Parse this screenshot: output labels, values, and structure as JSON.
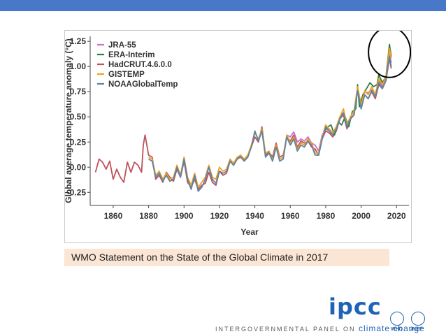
{
  "caption": "WMO Statement on the State of the Global Climate in 2017",
  "logo": {
    "ipcc_text": "ipcc",
    "tagline_prefix": "INTERGOVERNMENTAL PANEL ON",
    "tagline_strong": "climate change",
    "org1": "WHO",
    "org2": "UNEP"
  },
  "colors": {
    "top_bar": "#4a78c8",
    "JRA-55": "#c86fc8",
    "ERA-Interim": "#2e7d3c",
    "HadCRUT.4.6.0.0": "#c0505a",
    "GISTEMP": "#f0a020",
    "NOAAGlobalTemp": "#5a86a8",
    "highlight_circle": "#000000"
  },
  "chart_data": {
    "type": "line",
    "title": "",
    "xlabel": "Year",
    "ylabel": "Global average temperature anomaly (°C)",
    "xlim": [
      1847,
      2027
    ],
    "ylim": [
      -0.38,
      1.3
    ],
    "xticks": [
      1860,
      1880,
      1900,
      1920,
      1940,
      1960,
      1980,
      2000,
      2020
    ],
    "yticks": [
      -0.25,
      0.0,
      0.25,
      0.5,
      0.75,
      1.0,
      1.25
    ],
    "ytick_labels": [
      "−0.25",
      "0.00",
      "0.25",
      "0.50",
      "0.75",
      "1.00",
      "1.25"
    ],
    "grid": false,
    "legend_position": "top-left",
    "highlight": {
      "x": 2016,
      "y": 1.1
    },
    "series": [
      {
        "name": "JRA-55",
        "x": [
          1958,
          1960,
          1962,
          1964,
          1966,
          1968,
          1970,
          1972,
          1974,
          1976,
          1978,
          1980,
          1982,
          1984,
          1986,
          1988,
          1990,
          1992,
          1994,
          1996,
          1998,
          2000,
          2002,
          2004,
          2006,
          2008,
          2010,
          2012,
          2014,
          2016,
          2017
        ],
        "y": [
          0.32,
          0.3,
          0.35,
          0.25,
          0.28,
          0.26,
          0.3,
          0.24,
          0.22,
          0.16,
          0.32,
          0.38,
          0.36,
          0.34,
          0.4,
          0.5,
          0.54,
          0.42,
          0.5,
          0.55,
          0.78,
          0.6,
          0.75,
          0.74,
          0.77,
          0.7,
          0.86,
          0.8,
          0.88,
          1.12,
          1.04
        ]
      },
      {
        "name": "ERA-Interim",
        "x": [
          1979,
          1981,
          1983,
          1985,
          1987,
          1989,
          1991,
          1993,
          1995,
          1997,
          1998,
          1999,
          2001,
          2003,
          2005,
          2007,
          2009,
          2010,
          2012,
          2014,
          2015,
          2016,
          2017
        ],
        "y": [
          0.36,
          0.4,
          0.42,
          0.32,
          0.45,
          0.42,
          0.5,
          0.4,
          0.55,
          0.58,
          0.82,
          0.6,
          0.72,
          0.78,
          0.84,
          0.8,
          0.82,
          0.92,
          0.84,
          0.9,
          1.06,
          1.22,
          1.1
        ]
      },
      {
        "name": "HadCRUT.4.6.0.0",
        "x": [
          1850,
          1852,
          1854,
          1856,
          1858,
          1860,
          1862,
          1864,
          1866,
          1868,
          1870,
          1872,
          1874,
          1876,
          1877,
          1878,
          1880,
          1882,
          1884,
          1886,
          1888,
          1890,
          1892,
          1894,
          1896,
          1898,
          1900,
          1902,
          1904,
          1906,
          1908,
          1910,
          1912,
          1914,
          1916,
          1918,
          1920,
          1922,
          1924,
          1926,
          1928,
          1930,
          1932,
          1934,
          1936,
          1938,
          1940,
          1942,
          1944,
          1946,
          1948,
          1950,
          1952,
          1954,
          1956,
          1958,
          1960,
          1962,
          1964,
          1966,
          1968,
          1970,
          1972,
          1974,
          1976,
          1978,
          1980,
          1982,
          1984,
          1986,
          1988,
          1990,
          1992,
          1994,
          1996,
          1998,
          2000,
          2002,
          2004,
          2006,
          2008,
          2010,
          2012,
          2014,
          2016,
          2017
        ],
        "y": [
          -0.05,
          0.08,
          0.05,
          -0.02,
          0.06,
          -0.12,
          -0.02,
          -0.1,
          -0.15,
          0.05,
          -0.05,
          0.05,
          0.02,
          -0.05,
          0.22,
          0.32,
          0.12,
          0.1,
          -0.12,
          -0.08,
          -0.15,
          -0.05,
          -0.1,
          -0.14,
          -0.02,
          -0.1,
          0.06,
          -0.15,
          -0.2,
          -0.12,
          -0.22,
          -0.18,
          -0.16,
          -0.05,
          -0.15,
          -0.18,
          -0.04,
          -0.08,
          -0.06,
          0.06,
          0.02,
          0.08,
          0.12,
          0.06,
          0.12,
          0.2,
          0.3,
          0.25,
          0.4,
          0.12,
          0.15,
          0.1,
          0.24,
          0.1,
          0.12,
          0.3,
          0.26,
          0.32,
          0.2,
          0.26,
          0.24,
          0.26,
          0.2,
          0.18,
          0.12,
          0.28,
          0.36,
          0.34,
          0.3,
          0.36,
          0.48,
          0.52,
          0.38,
          0.48,
          0.52,
          0.78,
          0.58,
          0.72,
          0.68,
          0.75,
          0.68,
          0.82,
          0.78,
          0.86,
          1.08,
          0.98
        ]
      },
      {
        "name": "GISTEMP",
        "x": [
          1880,
          1882,
          1884,
          1886,
          1888,
          1890,
          1892,
          1894,
          1896,
          1898,
          1900,
          1902,
          1904,
          1906,
          1908,
          1910,
          1912,
          1914,
          1916,
          1918,
          1920,
          1922,
          1924,
          1926,
          1928,
          1930,
          1932,
          1934,
          1936,
          1938,
          1940,
          1942,
          1944,
          1946,
          1948,
          1950,
          1952,
          1954,
          1956,
          1958,
          1960,
          1962,
          1964,
          1966,
          1968,
          1970,
          1972,
          1974,
          1976,
          1978,
          1980,
          1982,
          1984,
          1986,
          1988,
          1990,
          1992,
          1994,
          1996,
          1998,
          2000,
          2002,
          2004,
          2006,
          2008,
          2010,
          2012,
          2014,
          2015,
          2016,
          2017
        ],
        "y": [
          0.1,
          0.08,
          -0.08,
          -0.04,
          -0.12,
          -0.06,
          -0.12,
          -0.1,
          0.02,
          -0.08,
          0.1,
          -0.1,
          -0.18,
          -0.06,
          -0.2,
          -0.15,
          -0.1,
          0.02,
          -0.1,
          -0.12,
          0.0,
          -0.04,
          -0.02,
          0.08,
          0.04,
          0.1,
          0.12,
          0.08,
          0.12,
          0.22,
          0.34,
          0.28,
          0.38,
          0.14,
          0.16,
          0.06,
          0.22,
          0.08,
          0.1,
          0.32,
          0.24,
          0.3,
          0.18,
          0.24,
          0.22,
          0.28,
          0.24,
          0.14,
          0.14,
          0.3,
          0.42,
          0.38,
          0.34,
          0.4,
          0.5,
          0.58,
          0.42,
          0.5,
          0.56,
          0.8,
          0.62,
          0.76,
          0.72,
          0.8,
          0.72,
          0.88,
          0.82,
          0.9,
          1.04,
          1.18,
          1.08
        ]
      },
      {
        "name": "NOAAGlobalTemp",
        "x": [
          1880,
          1882,
          1884,
          1886,
          1888,
          1890,
          1892,
          1894,
          1896,
          1898,
          1900,
          1902,
          1904,
          1906,
          1908,
          1910,
          1912,
          1914,
          1916,
          1918,
          1920,
          1922,
          1924,
          1926,
          1928,
          1930,
          1932,
          1934,
          1936,
          1938,
          1940,
          1942,
          1944,
          1946,
          1948,
          1950,
          1952,
          1954,
          1956,
          1958,
          1960,
          1962,
          1964,
          1966,
          1968,
          1970,
          1972,
          1974,
          1976,
          1978,
          1980,
          1982,
          1984,
          1986,
          1988,
          1990,
          1992,
          1994,
          1996,
          1998,
          2000,
          2002,
          2004,
          2006,
          2008,
          2010,
          2012,
          2014,
          2015,
          2016,
          2017
        ],
        "y": [
          0.08,
          0.06,
          -0.1,
          -0.06,
          -0.14,
          -0.08,
          -0.14,
          -0.12,
          0.0,
          -0.1,
          0.08,
          -0.12,
          -0.22,
          -0.08,
          -0.24,
          -0.2,
          -0.12,
          0.0,
          -0.12,
          -0.16,
          -0.04,
          -0.06,
          -0.04,
          0.06,
          0.02,
          0.08,
          0.1,
          0.06,
          0.1,
          0.2,
          0.36,
          0.26,
          0.36,
          0.1,
          0.14,
          0.06,
          0.2,
          0.06,
          0.08,
          0.3,
          0.22,
          0.28,
          0.16,
          0.22,
          0.2,
          0.26,
          0.22,
          0.12,
          0.12,
          0.28,
          0.4,
          0.36,
          0.32,
          0.38,
          0.48,
          0.54,
          0.4,
          0.48,
          0.52,
          0.76,
          0.58,
          0.72,
          0.68,
          0.76,
          0.7,
          0.84,
          0.78,
          0.86,
          1.0,
          1.1,
          1.0
        ]
      }
    ]
  }
}
